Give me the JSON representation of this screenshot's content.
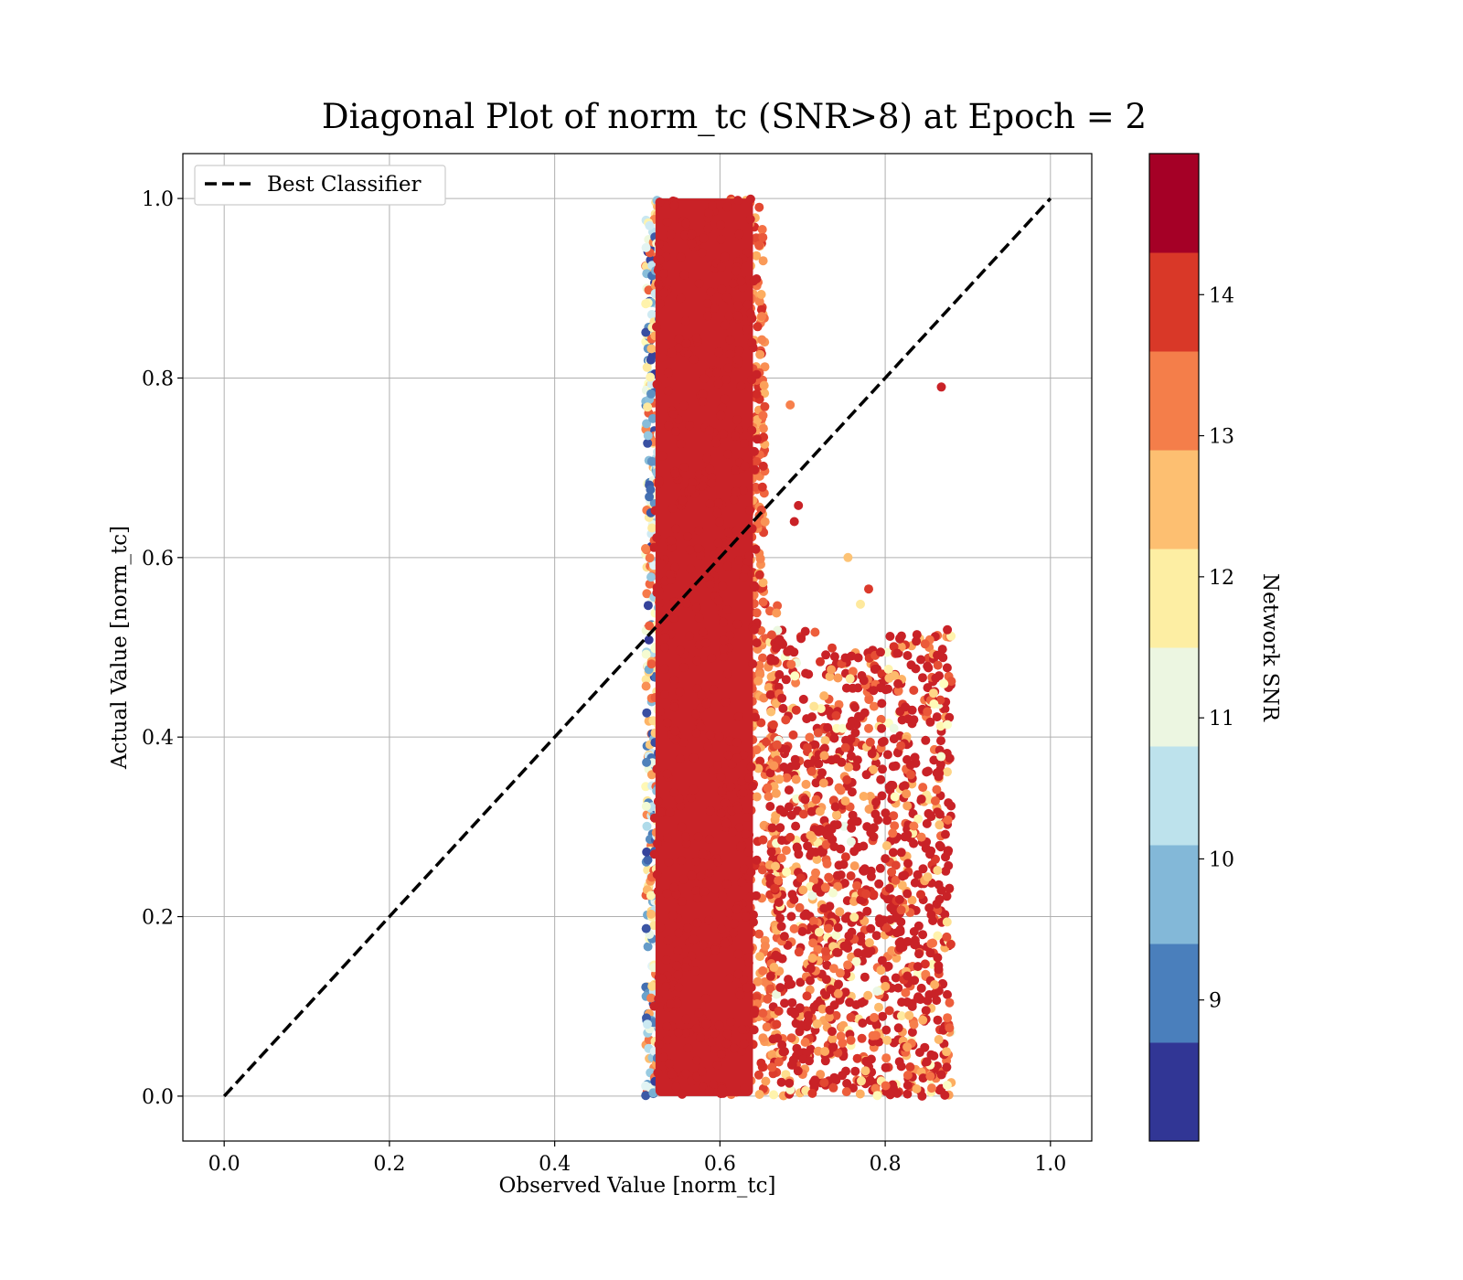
{
  "chart_data": {
    "type": "scatter",
    "title": "Diagonal Plot of norm_tc (SNR>8) at Epoch = 2",
    "xlabel": "Observed Value [norm_tc]",
    "ylabel": "Actual Value [norm_tc]",
    "xlim": [
      -0.05,
      1.05
    ],
    "ylim": [
      -0.05,
      1.05
    ],
    "x_ticks": [
      "0.0",
      "0.2",
      "0.4",
      "0.6",
      "0.8",
      "1.0"
    ],
    "y_ticks": [
      "0.0",
      "0.2",
      "0.4",
      "0.6",
      "0.8",
      "1.0"
    ],
    "grid": true,
    "legend": {
      "placement": "upper-left",
      "entries": [
        {
          "label": "Best Classifier",
          "style": "dashed",
          "color": "#000000"
        }
      ]
    },
    "reference_line": {
      "label": "Best Classifier",
      "x": [
        0.0,
        1.0
      ],
      "y": [
        0.0,
        1.0
      ]
    },
    "dense_band": {
      "x_range": [
        0.51,
        0.66
      ],
      "y_range": [
        0.0,
        1.0
      ],
      "dominant_snr": 14.5
    },
    "sparse_region": {
      "x_range": [
        0.66,
        0.88
      ],
      "y_range": [
        0.0,
        0.53
      ]
    },
    "outliers": [
      {
        "x": 0.868,
        "y": 0.79,
        "snr": 14.5
      },
      {
        "x": 0.685,
        "y": 0.77,
        "snr": 13.4
      },
      {
        "x": 0.755,
        "y": 0.6,
        "snr": 12.6
      },
      {
        "x": 0.78,
        "y": 0.565,
        "snr": 14.2
      },
      {
        "x": 0.77,
        "y": 0.548,
        "snr": 12.0
      },
      {
        "x": 0.695,
        "y": 0.658,
        "snr": 14.5
      },
      {
        "x": 0.69,
        "y": 0.64,
        "snr": 14.5
      },
      {
        "x": 0.51,
        "y": 0.61,
        "snr": 13.4
      }
    ],
    "colorbar": {
      "label": "Network SNR",
      "range": [
        8,
        15
      ],
      "ticks": [
        "9",
        "10",
        "11",
        "12",
        "13",
        "14"
      ],
      "tick_values": [
        9,
        10,
        11,
        12,
        13,
        14
      ],
      "colors": [
        "#313695",
        "#4575b4",
        "#74add1",
        "#abd9e9",
        "#e0f3f8",
        "#ffffbf",
        "#fee090",
        "#fdae61",
        "#f46d43",
        "#d73027",
        "#a50026"
      ],
      "display_colors": [
        "#313695",
        "#4a7fbc",
        "#83b8d8",
        "#bde2ec",
        "#ecf6e1",
        "#fdeea3",
        "#fdbf71",
        "#f47e4a",
        "#d93828",
        "#a50026"
      ]
    }
  }
}
